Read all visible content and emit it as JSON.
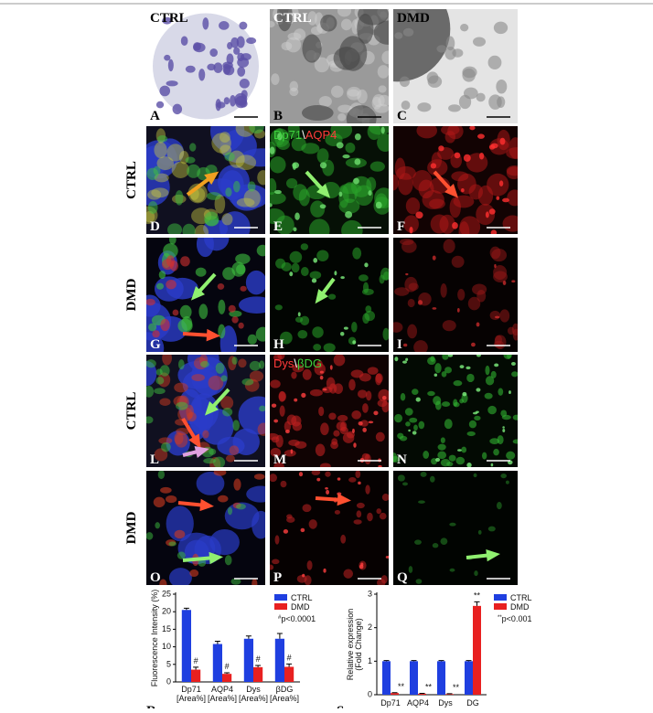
{
  "panels": [
    {
      "letter": "A",
      "label": "CTRL"
    },
    {
      "letter": "B",
      "label": "CTRL"
    },
    {
      "letter": "C",
      "label": "DMD"
    },
    {
      "letter": "D"
    },
    {
      "letter": "E"
    },
    {
      "letter": "F"
    },
    {
      "letter": "G"
    },
    {
      "letter": "H"
    },
    {
      "letter": "I"
    },
    {
      "letter": "L"
    },
    {
      "letter": "M"
    },
    {
      "letter": "N"
    },
    {
      "letter": "O"
    },
    {
      "letter": "P"
    },
    {
      "letter": "Q"
    }
  ],
  "row_labels": [
    "CTRL",
    "DMD",
    "CTRL",
    "DMD"
  ],
  "channel_labels": [
    {
      "green": "Dp71",
      "sep": "\\",
      "red": "AQP4"
    },
    {
      "red": "Dys",
      "sep": "\\",
      "green": "βDG"
    }
  ],
  "chart_data": [
    {
      "type": "bar",
      "panel": "R",
      "ylabel": "Fluorescence Intensity (%)",
      "categories": [
        [
          "Dp71",
          "[Area%]"
        ],
        [
          "AQP4",
          "[Area%]"
        ],
        [
          "Dys",
          "[Area%]"
        ],
        [
          "βDG",
          "[Area%]"
        ]
      ],
      "series": [
        {
          "name": "CTRL",
          "color": "#1f3fe0",
          "values": [
            20.5,
            10.8,
            12.3,
            12.3
          ],
          "errors": [
            0.5,
            0.8,
            0.8,
            1.5
          ]
        },
        {
          "name": "DMD",
          "color": "#e82020",
          "values": [
            3.5,
            2.3,
            4.2,
            4.3
          ],
          "errors": [
            0.7,
            0.3,
            0.5,
            0.8
          ]
        }
      ],
      "ylim": [
        0,
        25
      ],
      "yticks": [
        0,
        5,
        10,
        15,
        20,
        25
      ],
      "significance_symbol": "#",
      "significance_note": "p<0.0001"
    },
    {
      "type": "bar",
      "panel": "S",
      "ylabel": [
        "Relative expression",
        "(Fold Change)"
      ],
      "categories": [
        "Dp71",
        "AQP4",
        "Dys",
        "DG"
      ],
      "series": [
        {
          "name": "CTRL",
          "color": "#1f3fe0",
          "values": [
            1,
            1,
            1,
            1
          ],
          "errors": [
            0.02,
            0.02,
            0.02,
            0.02
          ]
        },
        {
          "name": "DMD",
          "color": "#e82020",
          "values": [
            0.05,
            0.03,
            0.02,
            2.65
          ],
          "errors": [
            0.01,
            0.01,
            0.01,
            0.12
          ]
        }
      ],
      "ylim": [
        0,
        3
      ],
      "yticks": [
        0,
        1,
        2,
        3
      ],
      "significance_symbol": "**",
      "significance_note": "p<0.001"
    }
  ]
}
